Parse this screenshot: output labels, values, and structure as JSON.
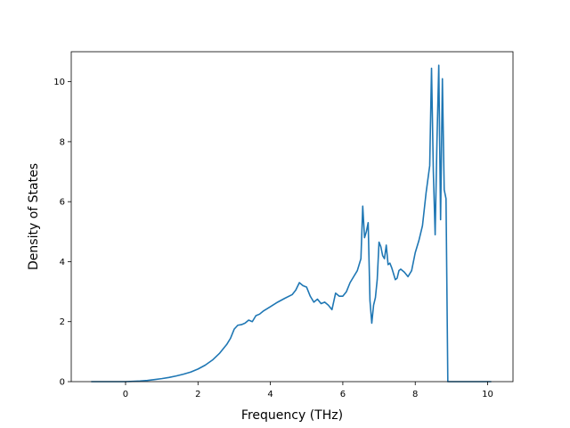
{
  "chart_data": {
    "type": "line",
    "title": "",
    "xlabel": "Frequency (THz)",
    "ylabel": "Density of States",
    "xlim": [
      -1.5,
      10.7
    ],
    "ylim": [
      0,
      11
    ],
    "xticks": [
      0,
      2,
      4,
      6,
      8,
      10
    ],
    "yticks": [
      0,
      2,
      4,
      6,
      8,
      10
    ],
    "grid": false,
    "legend": "none",
    "series": [
      {
        "color": "#1f77b4",
        "x": [
          -0.95,
          -0.5,
          0.0,
          0.2,
          0.4,
          0.6,
          0.8,
          1.0,
          1.2,
          1.4,
          1.6,
          1.8,
          2.0,
          2.2,
          2.4,
          2.6,
          2.7,
          2.8,
          2.9,
          3.0,
          3.1,
          3.2,
          3.3,
          3.4,
          3.5,
          3.6,
          3.7,
          3.8,
          4.0,
          4.2,
          4.4,
          4.6,
          4.7,
          4.8,
          4.9,
          5.0,
          5.1,
          5.2,
          5.3,
          5.4,
          5.5,
          5.6,
          5.7,
          5.8,
          5.9,
          6.0,
          6.1,
          6.2,
          6.3,
          6.4,
          6.5,
          6.55,
          6.6,
          6.65,
          6.7,
          6.75,
          6.8,
          6.85,
          6.9,
          6.95,
          7.0,
          7.05,
          7.1,
          7.15,
          7.2,
          7.25,
          7.3,
          7.35,
          7.4,
          7.45,
          7.5,
          7.55,
          7.6,
          7.7,
          7.8,
          7.9,
          8.0,
          8.1,
          8.2,
          8.3,
          8.4,
          8.45,
          8.5,
          8.55,
          8.6,
          8.65,
          8.7,
          8.75,
          8.8,
          8.85,
          8.9,
          8.95,
          9.0,
          9.05,
          9.1,
          9.15,
          9.2,
          9.25,
          9.3,
          10.1
        ],
        "y": [
          0.0,
          0.0,
          0.0,
          0.01,
          0.02,
          0.04,
          0.07,
          0.1,
          0.14,
          0.19,
          0.25,
          0.32,
          0.42,
          0.55,
          0.72,
          0.95,
          1.1,
          1.25,
          1.45,
          1.75,
          1.88,
          1.9,
          1.95,
          2.05,
          2.0,
          2.2,
          2.25,
          2.35,
          2.5,
          2.65,
          2.78,
          2.9,
          3.05,
          3.3,
          3.2,
          3.15,
          2.85,
          2.65,
          2.75,
          2.6,
          2.65,
          2.55,
          2.4,
          2.95,
          2.85,
          2.85,
          3.0,
          3.3,
          3.5,
          3.7,
          4.1,
          5.85,
          4.8,
          5.0,
          5.3,
          2.7,
          1.95,
          2.55,
          2.8,
          3.4,
          4.65,
          4.5,
          4.2,
          4.1,
          4.55,
          3.9,
          3.95,
          3.8,
          3.6,
          3.4,
          3.45,
          3.7,
          3.75,
          3.65,
          3.5,
          3.7,
          4.3,
          4.7,
          5.2,
          6.3,
          7.2,
          10.45,
          7.0,
          4.9,
          8.0,
          10.55,
          5.4,
          10.1,
          6.4,
          6.1,
          0.0,
          0.0,
          0.0,
          0.0,
          0.0,
          0.0,
          0.0,
          0.0,
          0.0,
          0.0
        ]
      }
    ]
  }
}
